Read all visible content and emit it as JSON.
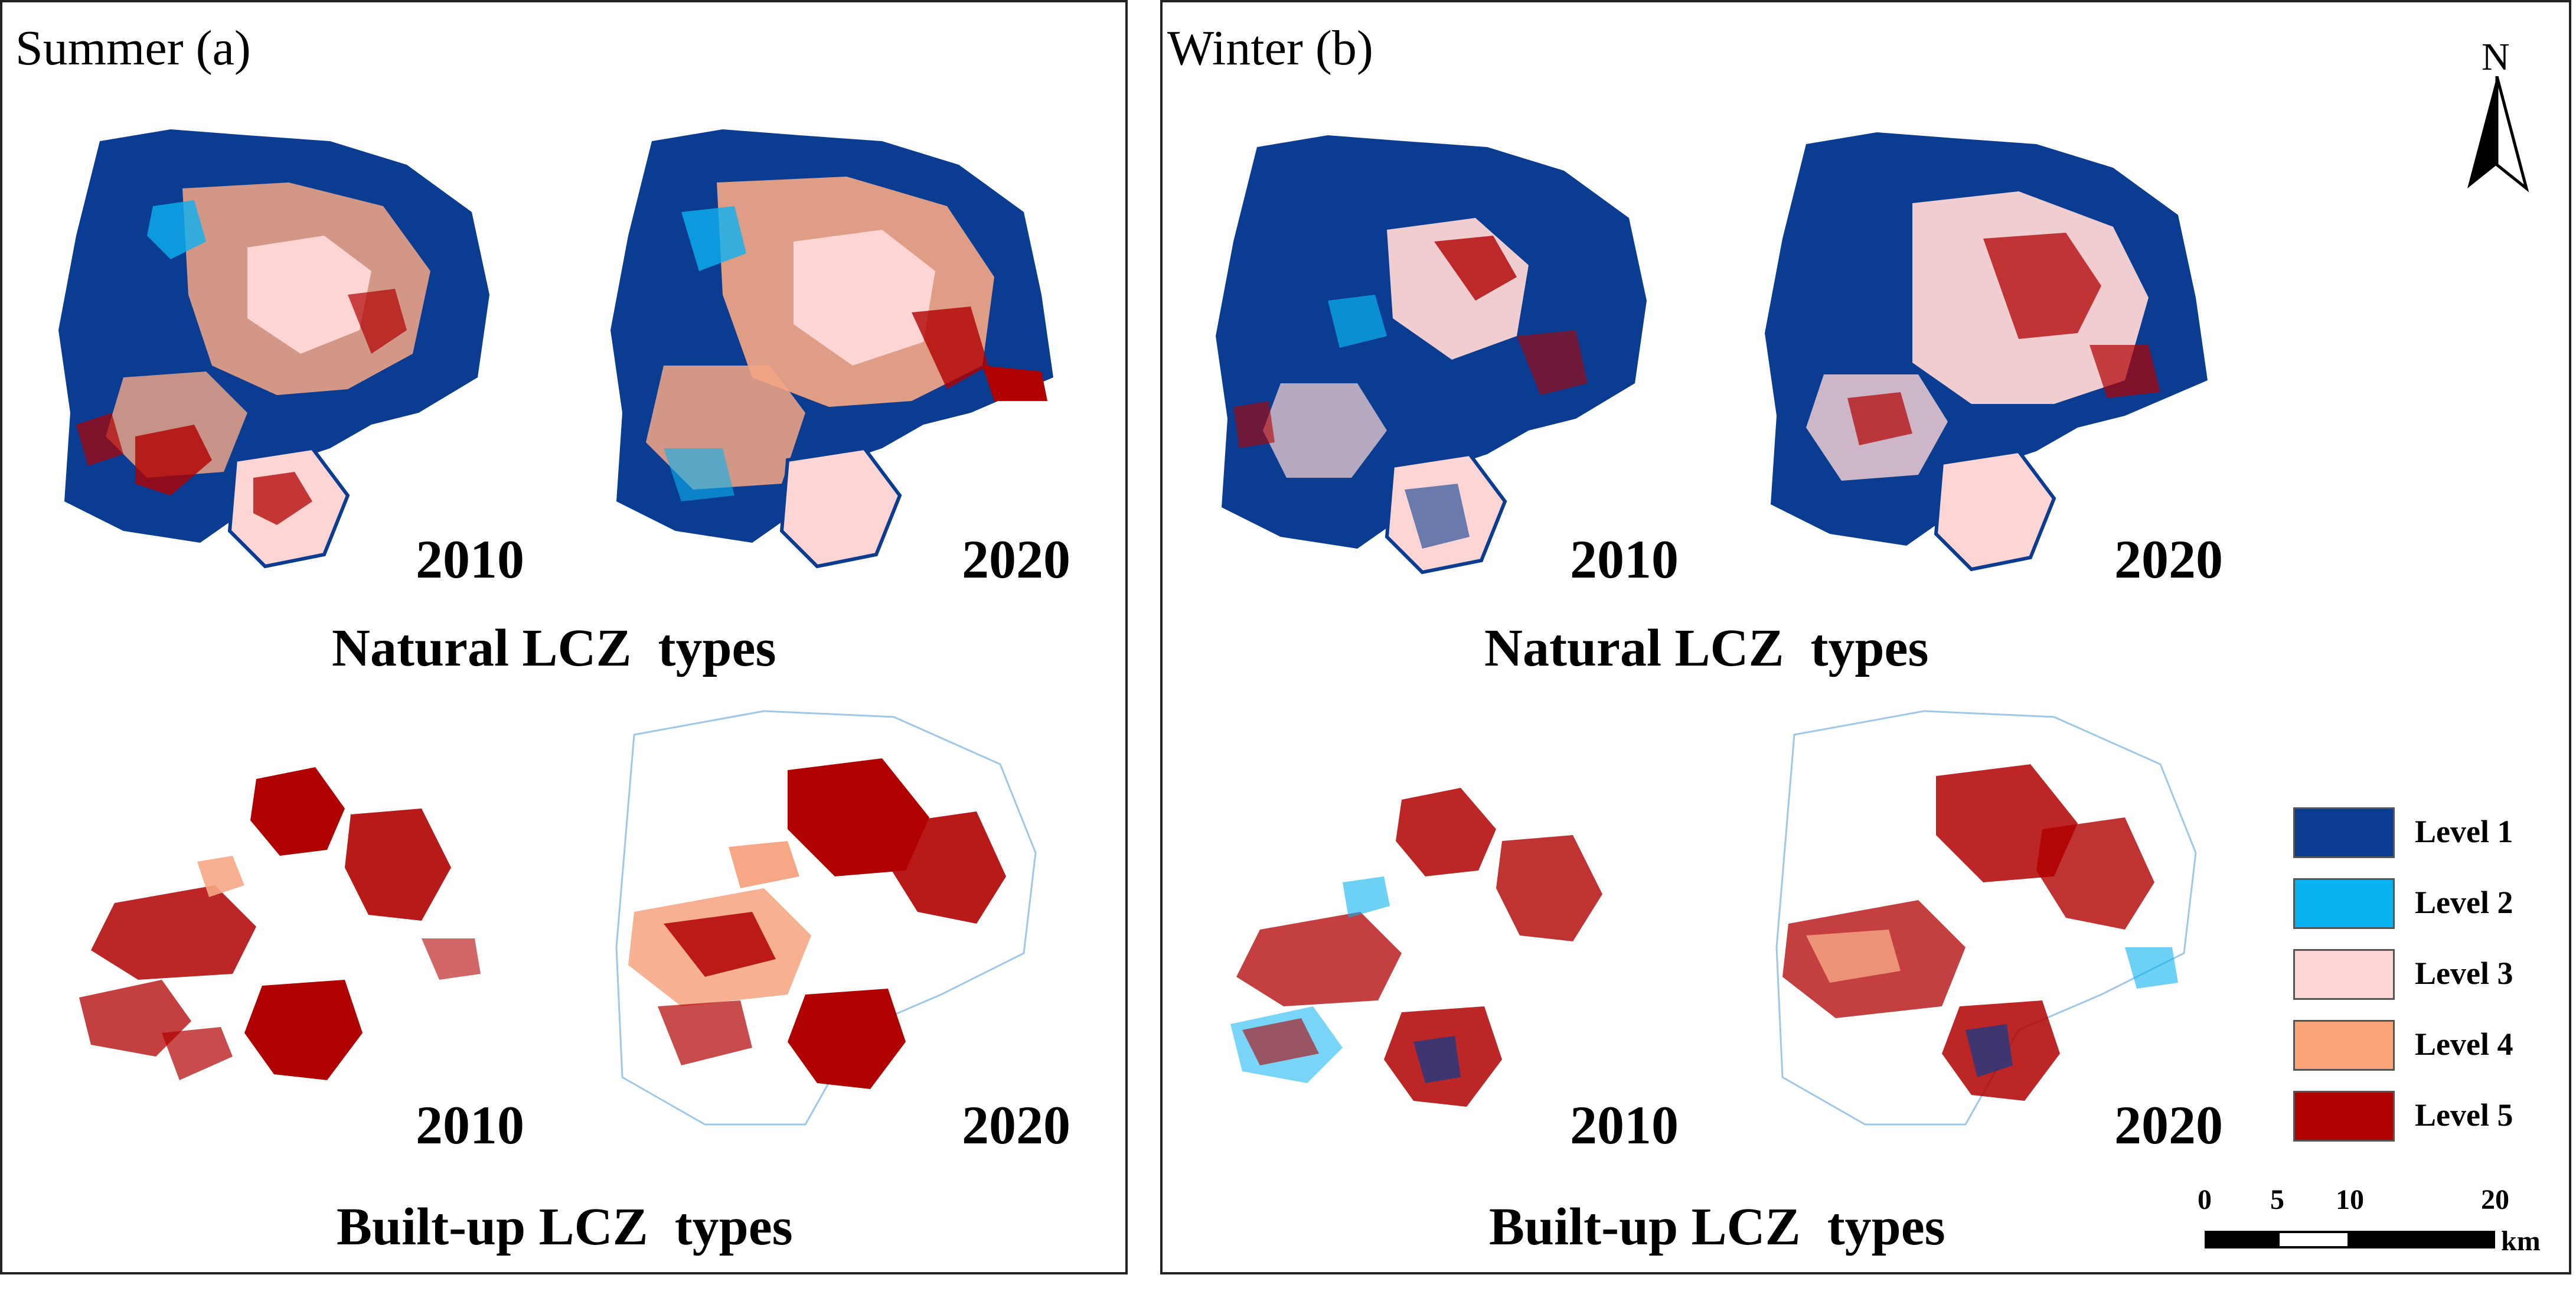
{
  "panels": [
    {
      "title": "Summer (a)",
      "natural": {
        "caption": "Natural LCZ  types",
        "years": [
          "2010",
          "2020"
        ]
      },
      "builtup": {
        "caption": "Built-up LCZ  types",
        "years": [
          "2010",
          "2020"
        ]
      }
    },
    {
      "title": "Winter (b)",
      "natural": {
        "caption": "Natural LCZ  types",
        "years": [
          "2010",
          "2020"
        ]
      },
      "builtup": {
        "caption": "Built-up LCZ  types",
        "years": [
          "2010",
          "2020"
        ]
      }
    }
  ],
  "north_arrow": {
    "label": "N"
  },
  "legend": {
    "items": [
      {
        "label": "Level 1",
        "color": "#0a3d91"
      },
      {
        "label": "Level 2",
        "color": "#0bb2f0"
      },
      {
        "label": "Level 3",
        "color": "#fdd5d5"
      },
      {
        "label": "Level 4",
        "color": "#fca57a"
      },
      {
        "label": "Level 5",
        "color": "#b00000"
      }
    ]
  },
  "scale_bar": {
    "ticks": [
      "0",
      "5",
      "10",
      "20"
    ],
    "unit": "km"
  }
}
